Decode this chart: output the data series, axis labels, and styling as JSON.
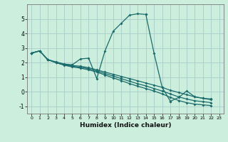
{
  "xlabel": "Humidex (Indice chaleur)",
  "background_color": "#cceedd",
  "grid_color": "#aacccc",
  "line_color": "#1a6b6b",
  "xlim": [
    -0.5,
    23.5
  ],
  "ylim": [
    -1.5,
    6.0
  ],
  "yticks": [
    -1,
    0,
    1,
    2,
    3,
    4,
    5
  ],
  "xticks": [
    0,
    1,
    2,
    3,
    4,
    5,
    6,
    7,
    8,
    9,
    10,
    11,
    12,
    13,
    14,
    15,
    16,
    17,
    18,
    19,
    20,
    21,
    22,
    23
  ],
  "lines": [
    {
      "segments": [
        {
          "x": [
            0,
            1,
            2,
            3,
            4,
            5,
            6,
            7,
            8,
            9,
            10,
            11,
            12,
            13,
            14
          ],
          "y": [
            2.65,
            2.8,
            2.2,
            2.05,
            1.9,
            1.85,
            2.25,
            2.3,
            0.9,
            2.8,
            4.15,
            4.7,
            5.25,
            5.35,
            5.3
          ]
        },
        {
          "x": [
            14,
            15,
            16,
            17
          ],
          "y": [
            5.3,
            2.65,
            0.3,
            -0.65
          ]
        },
        {
          "x": [
            17,
            18,
            19,
            20,
            21,
            22
          ],
          "y": [
            -0.65,
            -0.4,
            0.05,
            -0.35,
            -0.45,
            -0.5
          ]
        }
      ]
    },
    {
      "segments": [
        {
          "x": [
            0,
            1,
            2,
            3,
            4,
            5,
            6,
            7,
            8,
            9,
            10,
            11,
            12,
            13,
            14,
            15,
            16,
            17,
            18,
            19,
            20,
            21,
            22
          ],
          "y": [
            2.65,
            2.8,
            2.2,
            2.0,
            1.85,
            1.8,
            1.75,
            1.65,
            1.5,
            1.35,
            1.2,
            1.05,
            0.9,
            0.75,
            0.6,
            0.45,
            0.3,
            0.1,
            -0.05,
            -0.2,
            -0.35,
            -0.45,
            -0.55
          ]
        }
      ]
    },
    {
      "segments": [
        {
          "x": [
            0,
            1,
            2,
            3,
            4,
            5,
            6,
            7,
            8,
            9,
            10,
            11,
            12,
            13,
            14,
            15,
            16,
            17,
            18,
            19,
            20,
            21,
            22
          ],
          "y": [
            2.65,
            2.8,
            2.2,
            2.0,
            1.85,
            1.75,
            1.68,
            1.58,
            1.42,
            1.25,
            1.08,
            0.9,
            0.72,
            0.55,
            0.4,
            0.22,
            0.05,
            -0.15,
            -0.35,
            -0.5,
            -0.62,
            -0.68,
            -0.75
          ]
        }
      ]
    },
    {
      "segments": [
        {
          "x": [
            0,
            1,
            2,
            3,
            4,
            5,
            6,
            7,
            8,
            9,
            10,
            11,
            12,
            13,
            14,
            15,
            16,
            17,
            18,
            19,
            20,
            21,
            22
          ],
          "y": [
            2.65,
            2.8,
            2.2,
            2.0,
            1.82,
            1.7,
            1.62,
            1.5,
            1.35,
            1.15,
            0.95,
            0.76,
            0.56,
            0.38,
            0.22,
            0.05,
            -0.15,
            -0.38,
            -0.6,
            -0.75,
            -0.85,
            -0.9,
            -0.95
          ]
        }
      ]
    }
  ]
}
